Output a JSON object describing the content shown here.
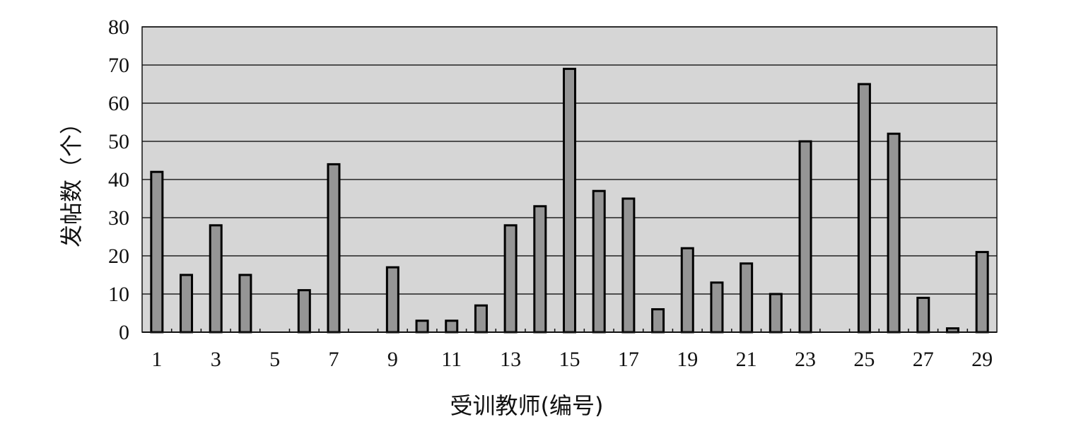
{
  "chart_data": {
    "type": "bar",
    "title": "",
    "xlabel": "受训教师(编号)",
    "ylabel": "发帖数（个）",
    "categories": [
      1,
      2,
      3,
      4,
      5,
      6,
      7,
      8,
      9,
      10,
      11,
      12,
      13,
      14,
      15,
      16,
      17,
      18,
      19,
      20,
      21,
      22,
      23,
      24,
      25,
      26,
      27,
      28,
      29
    ],
    "x_tick_labels": [
      "1",
      "3",
      "5",
      "7",
      "9",
      "11",
      "13",
      "15",
      "17",
      "19",
      "21",
      "23",
      "25",
      "27",
      "29"
    ],
    "values": [
      42,
      15,
      28,
      15,
      0,
      11,
      44,
      0,
      17,
      3,
      3,
      7,
      28,
      33,
      69,
      37,
      35,
      6,
      22,
      13,
      18,
      10,
      50,
      0,
      65,
      52,
      9,
      1,
      21
    ],
    "ylim": [
      0,
      80
    ],
    "y_ticks": [
      0,
      10,
      20,
      30,
      40,
      50,
      60,
      70,
      80
    ],
    "grid": "horizontal",
    "legend": "none",
    "colors": {
      "bar": "#959595",
      "bar_edge": "#000000",
      "plot_bg": "#d6d6d6",
      "grid": "#222222"
    }
  }
}
